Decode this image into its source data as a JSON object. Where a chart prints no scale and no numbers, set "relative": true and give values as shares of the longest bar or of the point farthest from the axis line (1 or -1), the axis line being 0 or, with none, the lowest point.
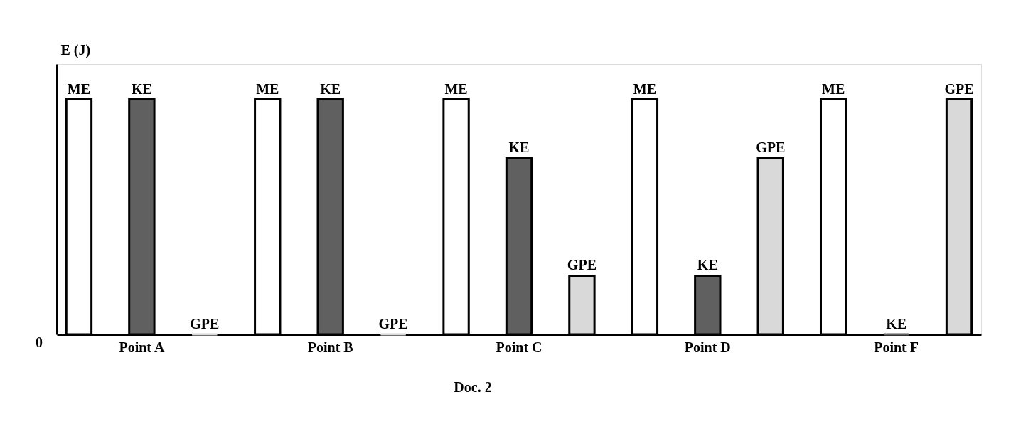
{
  "chart_data": {
    "type": "bar",
    "relative": true,
    "ylabel": "E (J)",
    "categories": [
      "Point A",
      "Point B",
      "Point C",
      "Point D",
      "Point F"
    ],
    "series": [
      {
        "name": "ME",
        "color": "#ffffff",
        "values": [
          1,
          1,
          1,
          1,
          1
        ]
      },
      {
        "name": "KE",
        "color": "#606060",
        "values": [
          1,
          1,
          0.75,
          0.25,
          0
        ]
      },
      {
        "name": "GPE",
        "color": "#d9d9d9",
        "values": [
          0,
          0,
          0.25,
          0.75,
          1
        ]
      }
    ],
    "annotations": [
      "0",
      "Doc. 2"
    ],
    "grid": false,
    "legend": false
  }
}
